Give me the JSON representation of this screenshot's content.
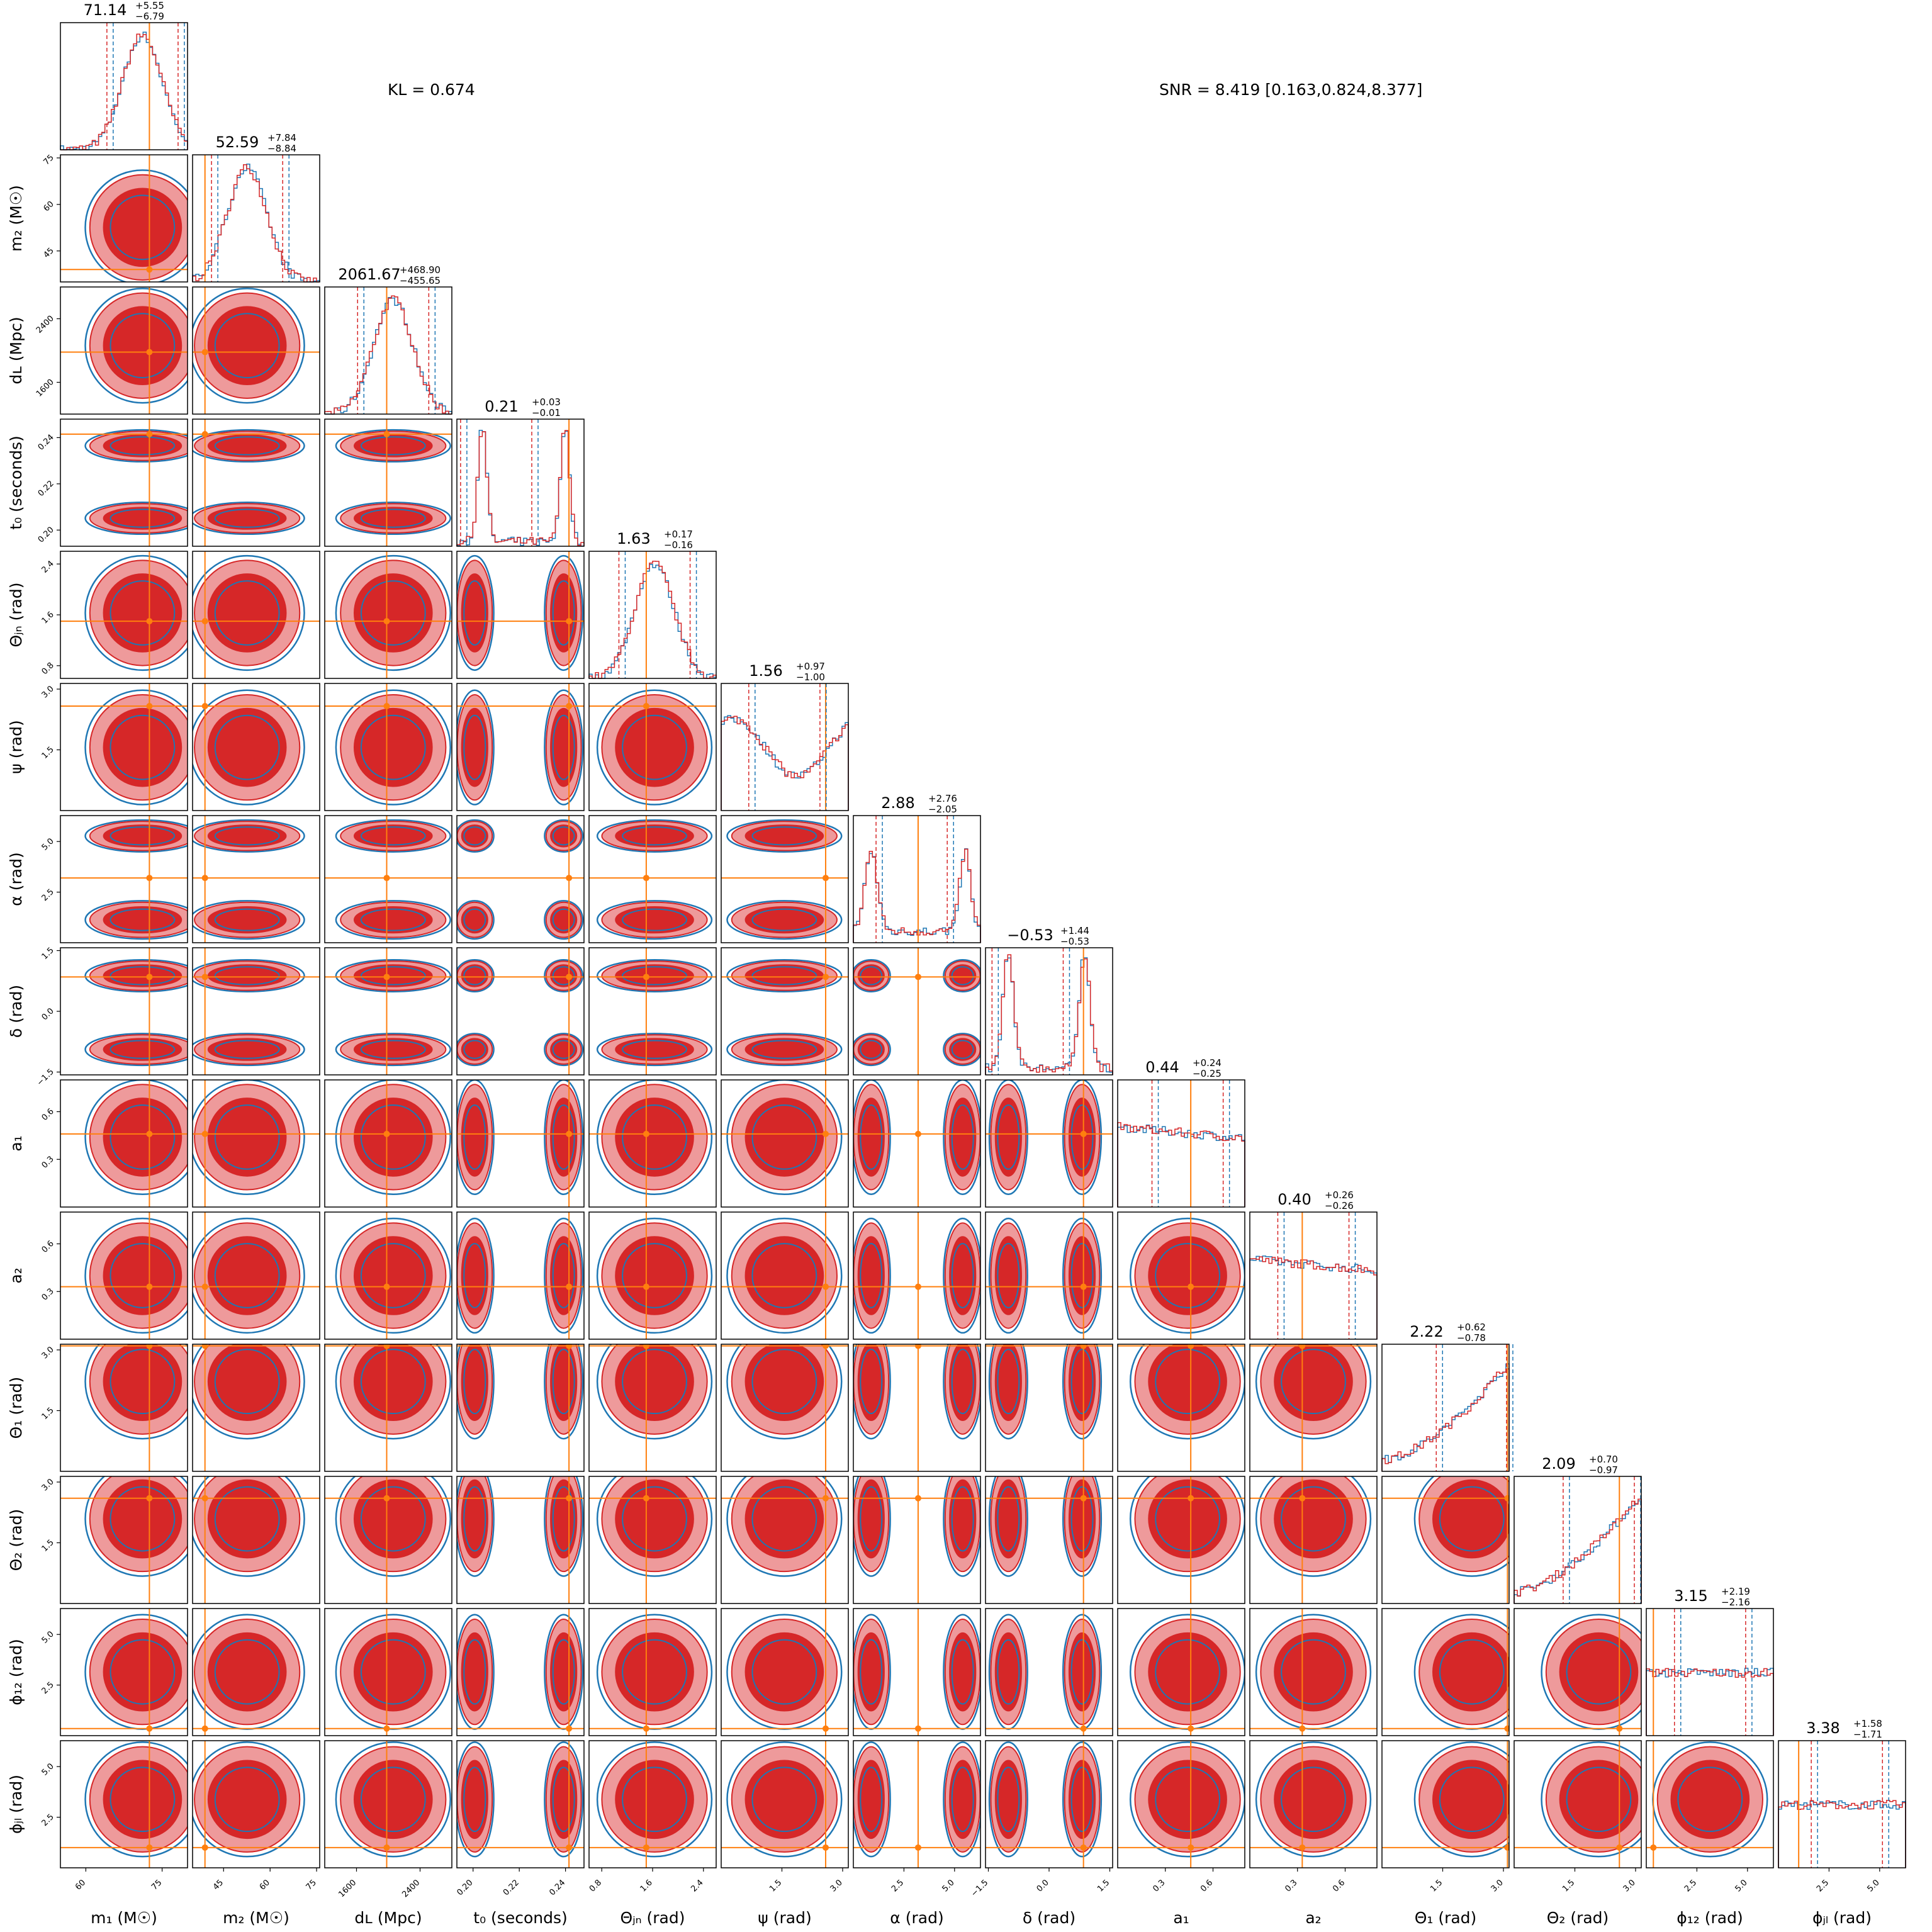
{
  "annotations": {
    "kl": "KL = 0.674",
    "snr": "SNR = 8.419 [0.163,0.824,8.377]"
  },
  "colors": {
    "posterior_a": "#d62728",
    "posterior_a_light": "#ee9a9b",
    "posterior_b": "#1f77b4",
    "truth": "#ff7f0e"
  },
  "chart_data": {
    "type": "corner",
    "n_params": 14,
    "parameters": [
      {
        "label": "m₁ (M☉)",
        "range": [
          55,
          80
        ],
        "ticks": [
          {
            "v": 60,
            "t": "60"
          },
          {
            "v": 75,
            "t": "75"
          }
        ],
        "truth": 72.5,
        "median": 71.14,
        "plus": "+5.55",
        "minus": "−6.79",
        "title_value": "71.14"
      },
      {
        "label": "m₂ (M☉)",
        "range": [
          35,
          76
        ],
        "ticks": [
          {
            "v": 45,
            "t": "45"
          },
          {
            "v": 60,
            "t": "60"
          },
          {
            "v": 75,
            "t": "75"
          }
        ],
        "truth": 39,
        "median": 52.59,
        "plus": "+7.84",
        "minus": "−8.84",
        "title_value": "52.59"
      },
      {
        "label": "dʟ (Mpc)",
        "range": [
          1200,
          2800
        ],
        "ticks": [
          {
            "v": 1600,
            "t": "1600"
          },
          {
            "v": 2400,
            "t": "2400"
          }
        ],
        "truth": 1980,
        "median": 2061.67,
        "plus": "+468.90",
        "minus": "−455.65",
        "title_value": "2061.67"
      },
      {
        "label": "t₀ (seconds)",
        "range": [
          0.193,
          0.248
        ],
        "ticks": [
          {
            "v": 0.2,
            "t": "0.20"
          },
          {
            "v": 0.22,
            "t": "0.22"
          },
          {
            "v": 0.24,
            "t": "0.24"
          }
        ],
        "truth": 0.2415,
        "median": 0.21,
        "plus": "+0.03",
        "minus": "−0.01",
        "title_value": "0.21"
      },
      {
        "label": "Θⱼₙ (rad)",
        "range": [
          0.6,
          2.6
        ],
        "ticks": [
          {
            "v": 0.8,
            "t": "0.8"
          },
          {
            "v": 1.6,
            "t": "1.6"
          },
          {
            "v": 2.4,
            "t": "2.4"
          }
        ],
        "truth": 1.5,
        "median": 1.63,
        "plus": "+0.17",
        "minus": "−0.16",
        "title_value": "1.63"
      },
      {
        "label": "ψ (rad)",
        "range": [
          0,
          3.14
        ],
        "ticks": [
          {
            "v": 1.5,
            "t": "1.5"
          },
          {
            "v": 3.0,
            "t": "3.0"
          }
        ],
        "truth": 2.58,
        "median": 1.56,
        "plus": "+0.97",
        "minus": "−1.00",
        "title_value": "1.56"
      },
      {
        "label": "α (rad)",
        "range": [
          0,
          6.28
        ],
        "ticks": [
          {
            "v": 2.5,
            "t": "2.5"
          },
          {
            "v": 5.0,
            "t": "5.0"
          }
        ],
        "truth": 3.2,
        "median": 2.88,
        "plus": "+2.76",
        "minus": "−2.05",
        "title_value": "2.88"
      },
      {
        "label": "δ (rad)",
        "range": [
          -1.57,
          1.57
        ],
        "ticks": [
          {
            "v": -1.5,
            "t": "−1.5"
          },
          {
            "v": 0.0,
            "t": "0.0"
          },
          {
            "v": 1.5,
            "t": "1.5"
          }
        ],
        "truth": 0.85,
        "median": -0.53,
        "plus": "+1.44",
        "minus": "−0.53",
        "title_value": "−0.53"
      },
      {
        "label": "a₁",
        "range": [
          0,
          0.8
        ],
        "ticks": [
          {
            "v": 0.3,
            "t": "0.3"
          },
          {
            "v": 0.6,
            "t": "0.6"
          }
        ],
        "truth": 0.46,
        "median": 0.44,
        "plus": "+0.24",
        "minus": "−0.25",
        "title_value": "0.44"
      },
      {
        "label": "a₂",
        "range": [
          0,
          0.8
        ],
        "ticks": [
          {
            "v": 0.3,
            "t": "0.3"
          },
          {
            "v": 0.6,
            "t": "0.6"
          }
        ],
        "truth": 0.33,
        "median": 0.4,
        "plus": "+0.26",
        "minus": "−0.26",
        "title_value": "0.40"
      },
      {
        "label": "Θ₁ (rad)",
        "range": [
          0,
          3.14
        ],
        "ticks": [
          {
            "v": 1.5,
            "t": "1.5"
          },
          {
            "v": 3.0,
            "t": "3.0"
          }
        ],
        "truth": 3.1,
        "median": 2.22,
        "plus": "+0.62",
        "minus": "−0.78",
        "title_value": "2.22"
      },
      {
        "label": "Θ₂ (rad)",
        "range": [
          0,
          3.14
        ],
        "ticks": [
          {
            "v": 1.5,
            "t": "1.5"
          },
          {
            "v": 3.0,
            "t": "3.0"
          }
        ],
        "truth": 2.6,
        "median": 2.09,
        "plus": "+0.70",
        "minus": "−0.97",
        "title_value": "2.09"
      },
      {
        "label": "ϕ₁₂ (rad)",
        "range": [
          0,
          6.28
        ],
        "ticks": [
          {
            "v": 2.5,
            "t": "2.5"
          },
          {
            "v": 5.0,
            "t": "5.0"
          }
        ],
        "truth": 0.35,
        "median": 3.15,
        "plus": "+2.19",
        "minus": "−2.16",
        "title_value": "3.15"
      },
      {
        "label": "ϕⱼₗ (rad)",
        "range": [
          0,
          6.28
        ],
        "ticks": [
          {
            "v": 2.5,
            "t": "2.5"
          },
          {
            "v": 5.0,
            "t": "5.0"
          }
        ],
        "truth": 1.0,
        "median": 3.38,
        "plus": "+1.58",
        "minus": "−1.71",
        "title_value": "3.38"
      }
    ]
  }
}
